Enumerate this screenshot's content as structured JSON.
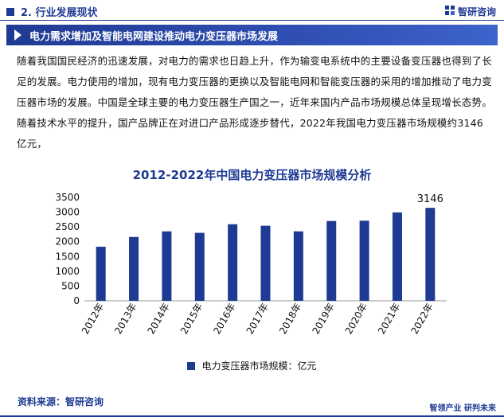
{
  "header": {
    "section_label": "2. 行业发展现状",
    "brand_name": "智研咨询"
  },
  "banner": {
    "title": "电力需求增加及智能电网建设推动电力变压器市场发展"
  },
  "paragraph": "随着我国国民经济的迅速发展，对电力的需求也日趋上升，作为输变电系统中的主要设备变压器也得到了长足的发展。电力使用的增加，现有电力变压器的更换以及智能电网和智能变压器的采用的增加推动了电力变压器市场的发展。中国是全球主要的电力变压器生产国之一，近年来国内产品市场规模总体呈现增长态势。随着技术水平的提升，国产品牌正在对进口产品形成逐步替代，2022年我国电力变压器市场规模约3146亿元，",
  "chart_data": {
    "type": "bar",
    "title": "2012-2022年中国电力变压器市场规模分析",
    "categories": [
      "2012年",
      "2013年",
      "2014年",
      "2015年",
      "2016年",
      "2017年",
      "2018年",
      "2019年",
      "2020年",
      "2021年",
      "2022年"
    ],
    "series": [
      {
        "name": "电力变压器市场规模：亿元",
        "values": [
          1830,
          2160,
          2350,
          2300,
          2590,
          2540,
          2350,
          2700,
          2710,
          2990,
          3146
        ]
      }
    ],
    "ylim": [
      0,
      3500
    ],
    "yticks": [
      "0",
      "500",
      "1000",
      "1500",
      "2000",
      "2500",
      "3000",
      "3500"
    ],
    "data_labels": {
      "10": "3146"
    },
    "grid": false,
    "legend_position": "bottom",
    "bar_color": "#1f3a93"
  },
  "footer": {
    "source": "资料来源：智研咨询",
    "brand_tagline": "智领产业 研判未来"
  },
  "colors": {
    "brand": "#1f3a93"
  }
}
